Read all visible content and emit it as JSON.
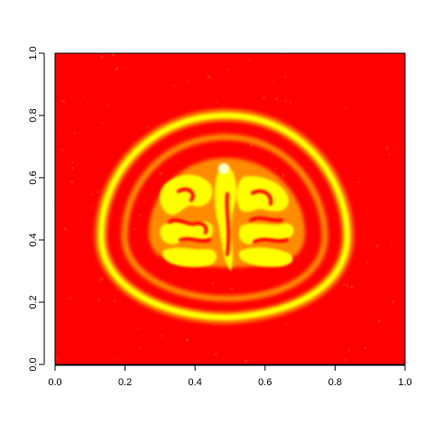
{
  "chart_data": {
    "type": "heatmap",
    "title": "",
    "xlabel": "",
    "ylabel": "",
    "xlim": [
      0.0,
      1.0
    ],
    "ylim": [
      0.0,
      1.0
    ],
    "x_ticks": [
      0.0,
      0.2,
      0.4,
      0.6,
      0.8,
      1.0
    ],
    "y_ticks": [
      0.0,
      0.2,
      0.4,
      0.6,
      0.8,
      1.0
    ],
    "x_tick_labels": [
      "0.0",
      "0.2",
      "0.4",
      "0.6",
      "0.8",
      "1.0"
    ],
    "y_tick_labels": [
      "0.0",
      "0.2",
      "0.4",
      "0.6",
      "0.8",
      "1.0"
    ],
    "colormap": "heat",
    "colors": {
      "low": "#ff0000",
      "mid": "#ff8c00",
      "high": "#ffff00"
    },
    "subject": "axial brain MRI slice",
    "grid": false,
    "legend": "none"
  }
}
